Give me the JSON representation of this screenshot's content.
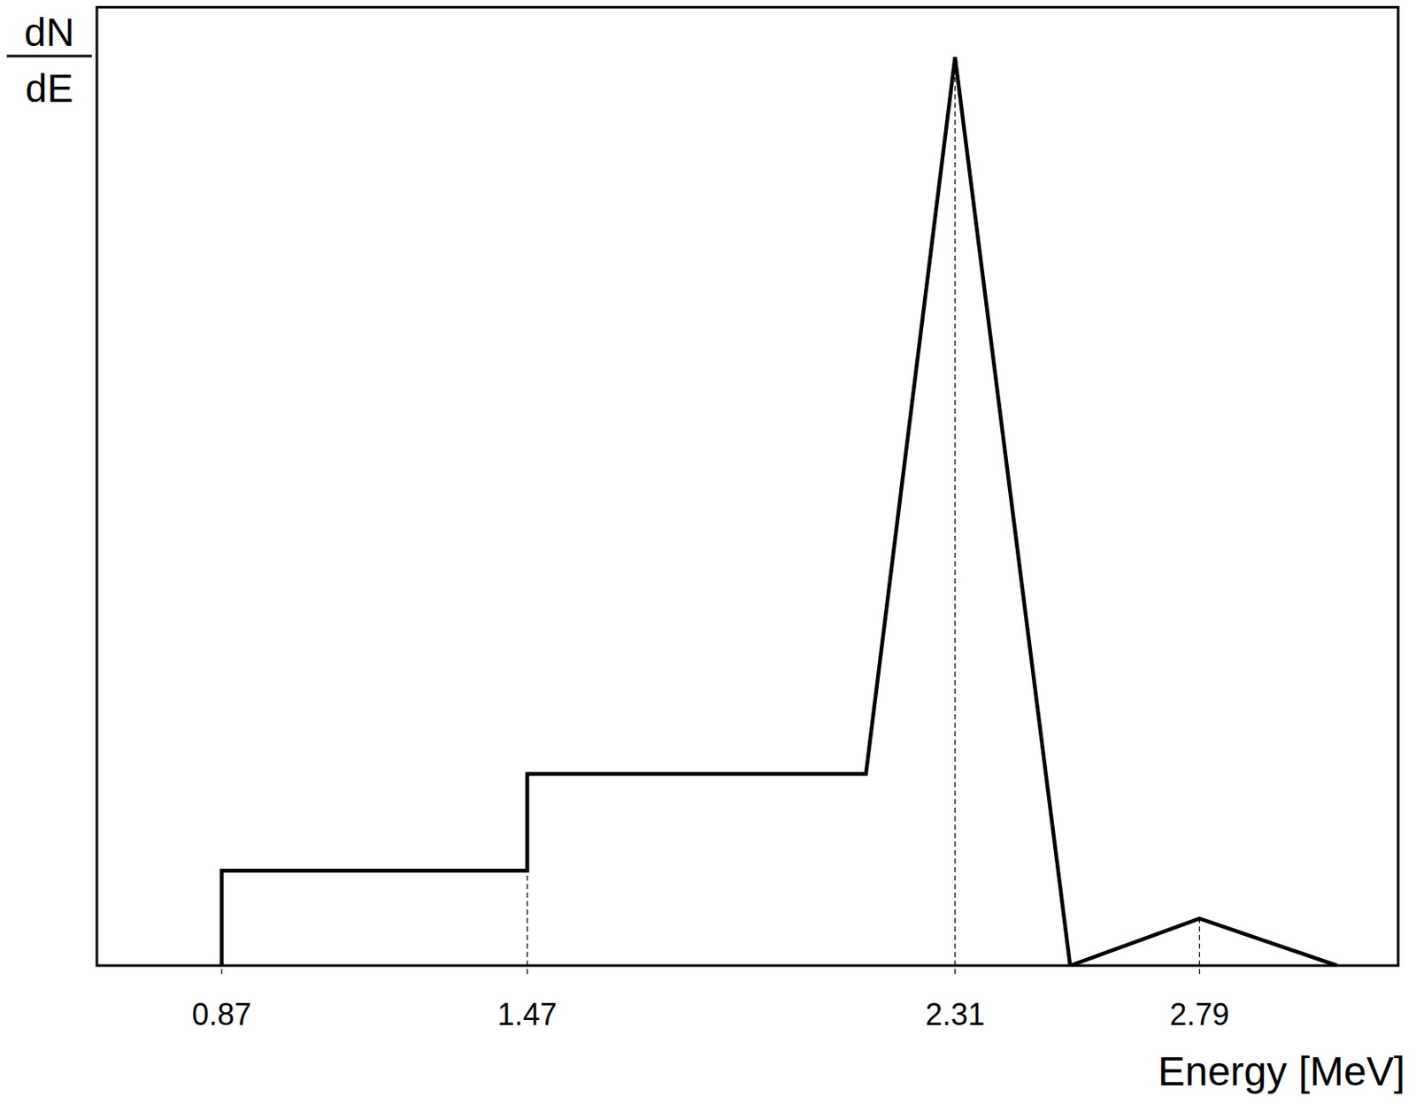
{
  "chart_data": {
    "type": "line",
    "xlabel": "Energy [MeV]",
    "ylabel": {
      "numerator": "dN",
      "denominator": "dE"
    },
    "x": [
      0.87,
      0.87,
      1.47,
      1.47,
      2.135,
      2.31,
      2.536,
      2.79,
      3.06
    ],
    "values": [
      0,
      9.9,
      9.9,
      20,
      20,
      94.8,
      0,
      4.9,
      0
    ],
    "color": "#000000",
    "xlim": [
      0.625,
      3.18
    ],
    "ylim": [
      0,
      100
    ],
    "xticks": [
      0.87,
      1.47,
      2.31,
      2.79
    ],
    "grid": false,
    "tick_labels": "x"
  }
}
